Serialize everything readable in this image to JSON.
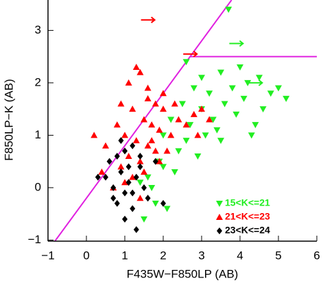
{
  "chart_data": {
    "type": "scatter",
    "x_label": "F435W−F850LP (AB)",
    "y_label": "F850LP−K (AB)",
    "xlim": [
      -1,
      6
    ],
    "ylim": [
      -1.02,
      3.58
    ],
    "xticks": [
      {
        "value": -1,
        "label": "−1"
      },
      0,
      1,
      2,
      3,
      4,
      5,
      6
    ],
    "yticks": [
      {
        "value": -1,
        "label": "−1"
      },
      0,
      1,
      2,
      3
    ],
    "lines": [
      {
        "color": "#e020e0",
        "x": [
          -0.82,
          3.78
        ],
        "y": [
          -1.02,
          3.58
        ]
      },
      {
        "color": "#e020e0",
        "x": [
          2.7,
          6
        ],
        "y": [
          2.5,
          2.5
        ]
      }
    ],
    "series": [
      {
        "name": "15<K<=21",
        "color": "#22ee22",
        "marker": "triangle-down",
        "x": [
          3.7,
          2.6,
          3.0,
          3.5,
          4.0,
          4.5,
          5.0,
          2.8,
          3.2,
          3.8,
          4.2,
          4.8,
          2.5,
          3.0,
          3.6,
          4.1,
          4.6,
          2.2,
          2.7,
          3.3,
          3.9,
          4.4,
          2.0,
          2.6,
          3.1,
          3.4,
          2.4,
          2.9,
          1.9,
          2.3,
          1.6,
          1.8,
          2.1,
          1.5,
          3.5,
          4.3,
          5.2,
          1.4,
          1.7,
          2.0
        ],
        "y": [
          3.4,
          2.4,
          2.1,
          2.2,
          2.3,
          2.1,
          1.9,
          1.9,
          1.8,
          1.9,
          2.0,
          1.8,
          1.6,
          1.5,
          1.6,
          1.7,
          1.5,
          1.3,
          1.2,
          1.3,
          1.4,
          1.2,
          1.0,
          0.9,
          1.0,
          1.1,
          0.7,
          0.6,
          0.5,
          0.3,
          0.2,
          -0.3,
          -0.4,
          -0.6,
          0.9,
          1.0,
          1.7,
          0.1,
          0.0,
          0.4
        ],
        "lower_limits": {
          "x": [
            3.9,
            4.4
          ],
          "y": [
            2.75,
            2.0
          ]
        }
      },
      {
        "name": "21<K<=23",
        "color": "#ff0000",
        "marker": "triangle-up",
        "x": [
          1.1,
          1.4,
          1.6,
          1.8,
          2.0,
          1.2,
          1.5,
          1.7,
          1.9,
          2.2,
          0.8,
          1.0,
          1.3,
          1.6,
          2.4,
          2.6,
          2.8,
          3.0,
          1.1,
          1.4,
          0.9,
          0.5,
          0.2,
          1.2,
          1.5,
          1.8,
          2.1,
          0.7,
          1.0,
          1.6,
          2.0,
          2.3,
          1.3,
          1.7,
          0.4,
          3.2,
          2.9,
          1.9,
          1.4,
          0.9
        ],
        "y": [
          2.0,
          2.2,
          1.9,
          1.6,
          1.5,
          1.5,
          1.3,
          1.2,
          1.1,
          1.0,
          1.2,
          1.0,
          0.9,
          0.8,
          1.3,
          1.2,
          1.4,
          1.5,
          0.6,
          0.5,
          0.4,
          0.8,
          1.0,
          0.2,
          0.3,
          0.7,
          0.7,
          0.0,
          0.1,
          1.7,
          1.8,
          1.6,
          2.3,
          0.9,
          0.3,
          1.3,
          1.0,
          0.5,
          -0.2,
          1.6
        ],
        "lower_limits": {
          "x": [
            1.6,
            2.7
          ],
          "y": [
            3.2,
            2.55
          ]
        }
      },
      {
        "name": "23<K<=24",
        "color": "#000000",
        "marker": "diamond",
        "x": [
          0.6,
          0.8,
          1.0,
          1.2,
          1.4,
          0.9,
          1.1,
          1.3,
          0.7,
          1.0,
          1.5,
          0.8,
          1.2,
          1.6,
          0.5,
          1.0,
          1.3,
          0.9,
          1.1,
          1.4,
          0.7,
          1.8,
          1.2,
          0.3,
          2.0
        ],
        "y": [
          0.5,
          0.6,
          0.7,
          0.8,
          0.6,
          0.3,
          0.4,
          0.2,
          0.0,
          -0.1,
          0.0,
          -0.3,
          -0.4,
          -0.2,
          0.2,
          -0.6,
          -0.8,
          0.9,
          0.1,
          0.4,
          -0.2,
          0.5,
          -0.1,
          0.2,
          -0.3
        ]
      }
    ]
  }
}
